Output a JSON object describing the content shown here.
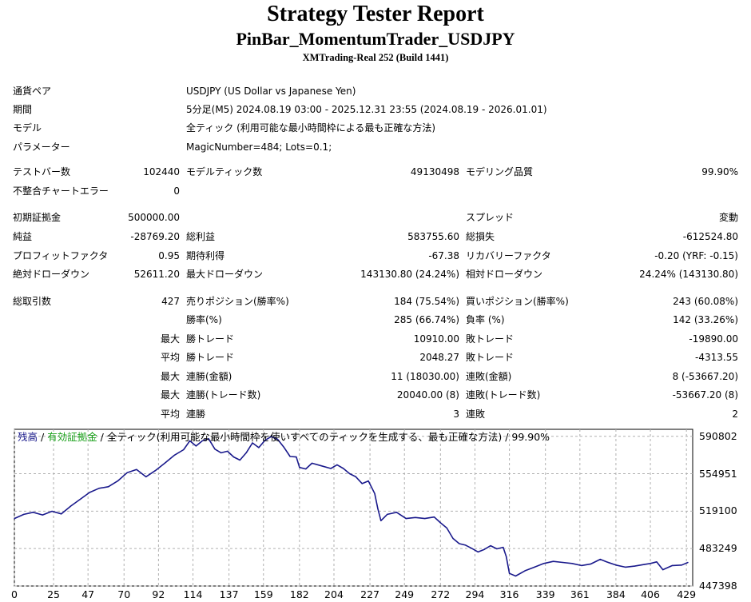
{
  "header": {
    "title": "Strategy Tester Report",
    "expert": "PinBar_MomentumTrader_USDJPY",
    "server": "XMTrading-Real 252 (Build 1441)"
  },
  "settings": {
    "pair_label": "通貨ペア",
    "pair_value": "USDJPY (US Dollar vs Japanese Yen)",
    "period_label": "期間",
    "period_value": "5分足(M5) 2024.08.19 03:00 - 2025.12.31 23:55 (2024.08.19 - 2026.01.01)",
    "model_label": "モデル",
    "model_value": "全ティック (利用可能な最小時間枠による最も正確な方法)",
    "params_label": "パラメーター",
    "params_value": "MagicNumber=484; Lots=0.1;"
  },
  "stats": {
    "bars_label": "テストバー数",
    "bars_value": "102440",
    "ticks_label": "モデルティック数",
    "ticks_value": "49130498",
    "quality_label": "モデリング品質",
    "quality_value": "99.90%",
    "mismatch_label": "不整合チャートエラー",
    "mismatch_value": "0",
    "deposit_label": "初期証拠金",
    "deposit_value": "500000.00",
    "spread_label": "スプレッド",
    "spread_value": "変動",
    "net_label": "純益",
    "net_value": "-28769.20",
    "gross_profit_label": "総利益",
    "gross_profit_value": "583755.60",
    "gross_loss_label": "総損失",
    "gross_loss_value": "-612524.80",
    "pf_label": "プロフィットファクタ",
    "pf_value": "0.95",
    "payoff_label": "期待利得",
    "payoff_value": "-67.38",
    "recovery_label": "リカバリーファクタ",
    "recovery_value": "-0.20 (YRF: -0.15)",
    "abs_dd_label": "絶対ドローダウン",
    "abs_dd_value": "52611.20",
    "max_dd_label": "最大ドローダウン",
    "max_dd_value": "143130.80 (24.24%)",
    "rel_dd_label": "相対ドローダウン",
    "rel_dd_value": "24.24% (143130.80)",
    "trades_label": "総取引数",
    "trades_value": "427",
    "short_label": "売りポジション(勝率%)",
    "short_value": "184 (75.54%)",
    "long_label": "買いポジション(勝率%)",
    "long_value": "243 (60.08%)",
    "win_label": "勝率(%)",
    "win_value": "285 (66.74%)",
    "loss_label": "負率 (%)",
    "loss_value": "142 (33.26%)",
    "max_word": "最大",
    "avg_word": "平均",
    "largest_win_label": "勝トレード",
    "largest_win_value": "10910.00",
    "largest_loss_label": "敗トレード",
    "largest_loss_value": "-19890.00",
    "avg_win_label": "勝トレード",
    "avg_win_value": "2048.27",
    "avg_loss_label": "敗トレード",
    "avg_loss_value": "-4313.55",
    "cons_wins_amt_label": "連勝(金額)",
    "cons_wins_amt_value": "11 (18030.00)",
    "cons_loss_amt_label": "連敗(金額)",
    "cons_loss_amt_value": "8 (-53667.20)",
    "cons_profit_label": "連勝(トレード数)",
    "cons_profit_value": "20040.00 (8)",
    "cons_lossn_label": "連敗(トレード数)",
    "cons_lossn_value": "-53667.20 (8)",
    "avg_cons_win_label": "連勝",
    "avg_cons_win_value": "3",
    "avg_cons_loss_label": "連敗",
    "avg_cons_loss_value": "2"
  },
  "chart_data": {
    "type": "line",
    "legend": {
      "balance": "残高",
      "sep1": " / ",
      "equity": "有効証拠金",
      "rest": " / 全ティック(利用可能な最小時間枠を使いすべてのティックを生成する、最も正確な方法) / 99.90%"
    },
    "colors": {
      "balance": "#1a1a8c",
      "equity": "#18a018",
      "grid": "#b0b0b0"
    },
    "x_ticks": [
      0,
      25,
      47,
      70,
      92,
      114,
      137,
      159,
      182,
      204,
      227,
      249,
      272,
      294,
      316,
      339,
      361,
      384,
      406,
      429
    ],
    "y_ticks": [
      590802,
      554951,
      519100,
      483249,
      447398
    ],
    "xlim": [
      0,
      433
    ],
    "ylim": [
      447398,
      597500
    ],
    "grid": true,
    "series": [
      {
        "values": [
          [
            0,
            512000
          ],
          [
            6,
            516000
          ],
          [
            12,
            518000
          ],
          [
            18,
            515500
          ],
          [
            24,
            519000
          ],
          [
            30,
            516500
          ],
          [
            36,
            524000
          ],
          [
            42,
            530500
          ],
          [
            48,
            537000
          ],
          [
            54,
            541000
          ],
          [
            60,
            542500
          ],
          [
            66,
            548000
          ],
          [
            72,
            556000
          ],
          [
            78,
            559000
          ],
          [
            84,
            552000
          ],
          [
            90,
            558000
          ],
          [
            96,
            565000
          ],
          [
            102,
            572500
          ],
          [
            108,
            578000
          ],
          [
            112,
            586500
          ],
          [
            116,
            581500
          ],
          [
            120,
            586500
          ],
          [
            124,
            588500
          ],
          [
            128,
            578500
          ],
          [
            132,
            575000
          ],
          [
            136,
            576500
          ],
          [
            140,
            571000
          ],
          [
            144,
            568000
          ],
          [
            148,
            575000
          ],
          [
            152,
            584500
          ],
          [
            156,
            580000
          ],
          [
            160,
            587000
          ],
          [
            164,
            590500
          ],
          [
            168,
            588000
          ],
          [
            172,
            580500
          ],
          [
            176,
            571500
          ],
          [
            180,
            571000
          ],
          [
            182,
            561000
          ],
          [
            186,
            559500
          ],
          [
            190,
            565000
          ],
          [
            196,
            562500
          ],
          [
            202,
            560000
          ],
          [
            206,
            563500
          ],
          [
            210,
            560000
          ],
          [
            214,
            555000
          ],
          [
            218,
            552000
          ],
          [
            222,
            545500
          ],
          [
            226,
            548000
          ],
          [
            230,
            536000
          ],
          [
            232,
            521500
          ],
          [
            234,
            510000
          ],
          [
            238,
            516000
          ],
          [
            244,
            518000
          ],
          [
            250,
            512000
          ],
          [
            256,
            513000
          ],
          [
            262,
            512000
          ],
          [
            268,
            513500
          ],
          [
            272,
            508000
          ],
          [
            276,
            503000
          ],
          [
            280,
            493000
          ],
          [
            284,
            488000
          ],
          [
            288,
            486500
          ],
          [
            292,
            483500
          ],
          [
            296,
            480000
          ],
          [
            300,
            482500
          ],
          [
            304,
            486000
          ],
          [
            308,
            483000
          ],
          [
            312,
            484500
          ],
          [
            314,
            475500
          ],
          [
            316,
            459500
          ],
          [
            320,
            457000
          ],
          [
            326,
            462000
          ],
          [
            332,
            465500
          ],
          [
            338,
            469000
          ],
          [
            344,
            471000
          ],
          [
            350,
            470000
          ],
          [
            356,
            469000
          ],
          [
            362,
            467000
          ],
          [
            368,
            468500
          ],
          [
            374,
            473000
          ],
          [
            378,
            470500
          ],
          [
            384,
            467500
          ],
          [
            390,
            465500
          ],
          [
            396,
            466500
          ],
          [
            402,
            468000
          ],
          [
            406,
            469000
          ],
          [
            410,
            470500
          ],
          [
            414,
            463000
          ],
          [
            420,
            467000
          ],
          [
            426,
            467500
          ],
          [
            430,
            470000
          ]
        ]
      }
    ]
  }
}
